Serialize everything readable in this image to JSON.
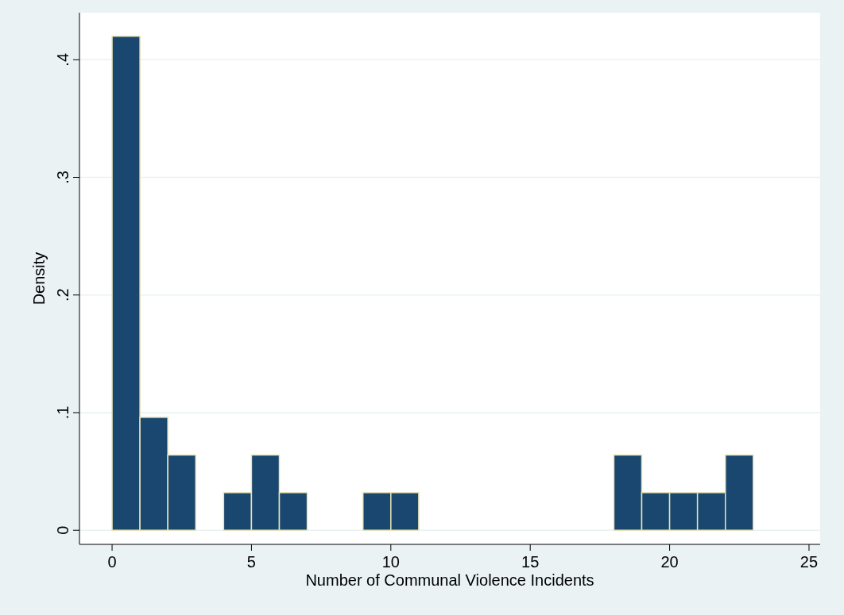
{
  "chart_data": {
    "type": "histogram",
    "xlabel": "Number of Communal Violence Incidents",
    "ylabel": "Density",
    "bins": [
      0,
      1,
      2,
      3,
      4,
      5,
      6,
      7,
      8,
      9,
      10,
      11,
      12,
      13,
      14,
      15,
      16,
      17,
      18,
      19,
      20,
      21,
      22,
      23
    ],
    "values": [
      0.42,
      0.096,
      0.064,
      0,
      0.032,
      0.064,
      0.032,
      0,
      0,
      0.032,
      0.032,
      0,
      0,
      0,
      0,
      0,
      0,
      0,
      0.064,
      0.032,
      0.032,
      0.032,
      0.064
    ],
    "color": "#1a476f",
    "xlim": [
      -1.17,
      25.4
    ],
    "xticks": [
      0,
      5,
      10,
      15,
      20,
      25
    ],
    "ylim": [
      -0.012,
      0.44
    ],
    "yticks": [
      {
        "value": 0,
        "label": "0"
      },
      {
        "value": 0.1,
        "label": ".1"
      },
      {
        "value": 0.2,
        "label": ".2"
      },
      {
        "value": 0.3,
        "label": ".3"
      },
      {
        "value": 0.4,
        "label": ".4"
      }
    ],
    "grid": "y"
  }
}
